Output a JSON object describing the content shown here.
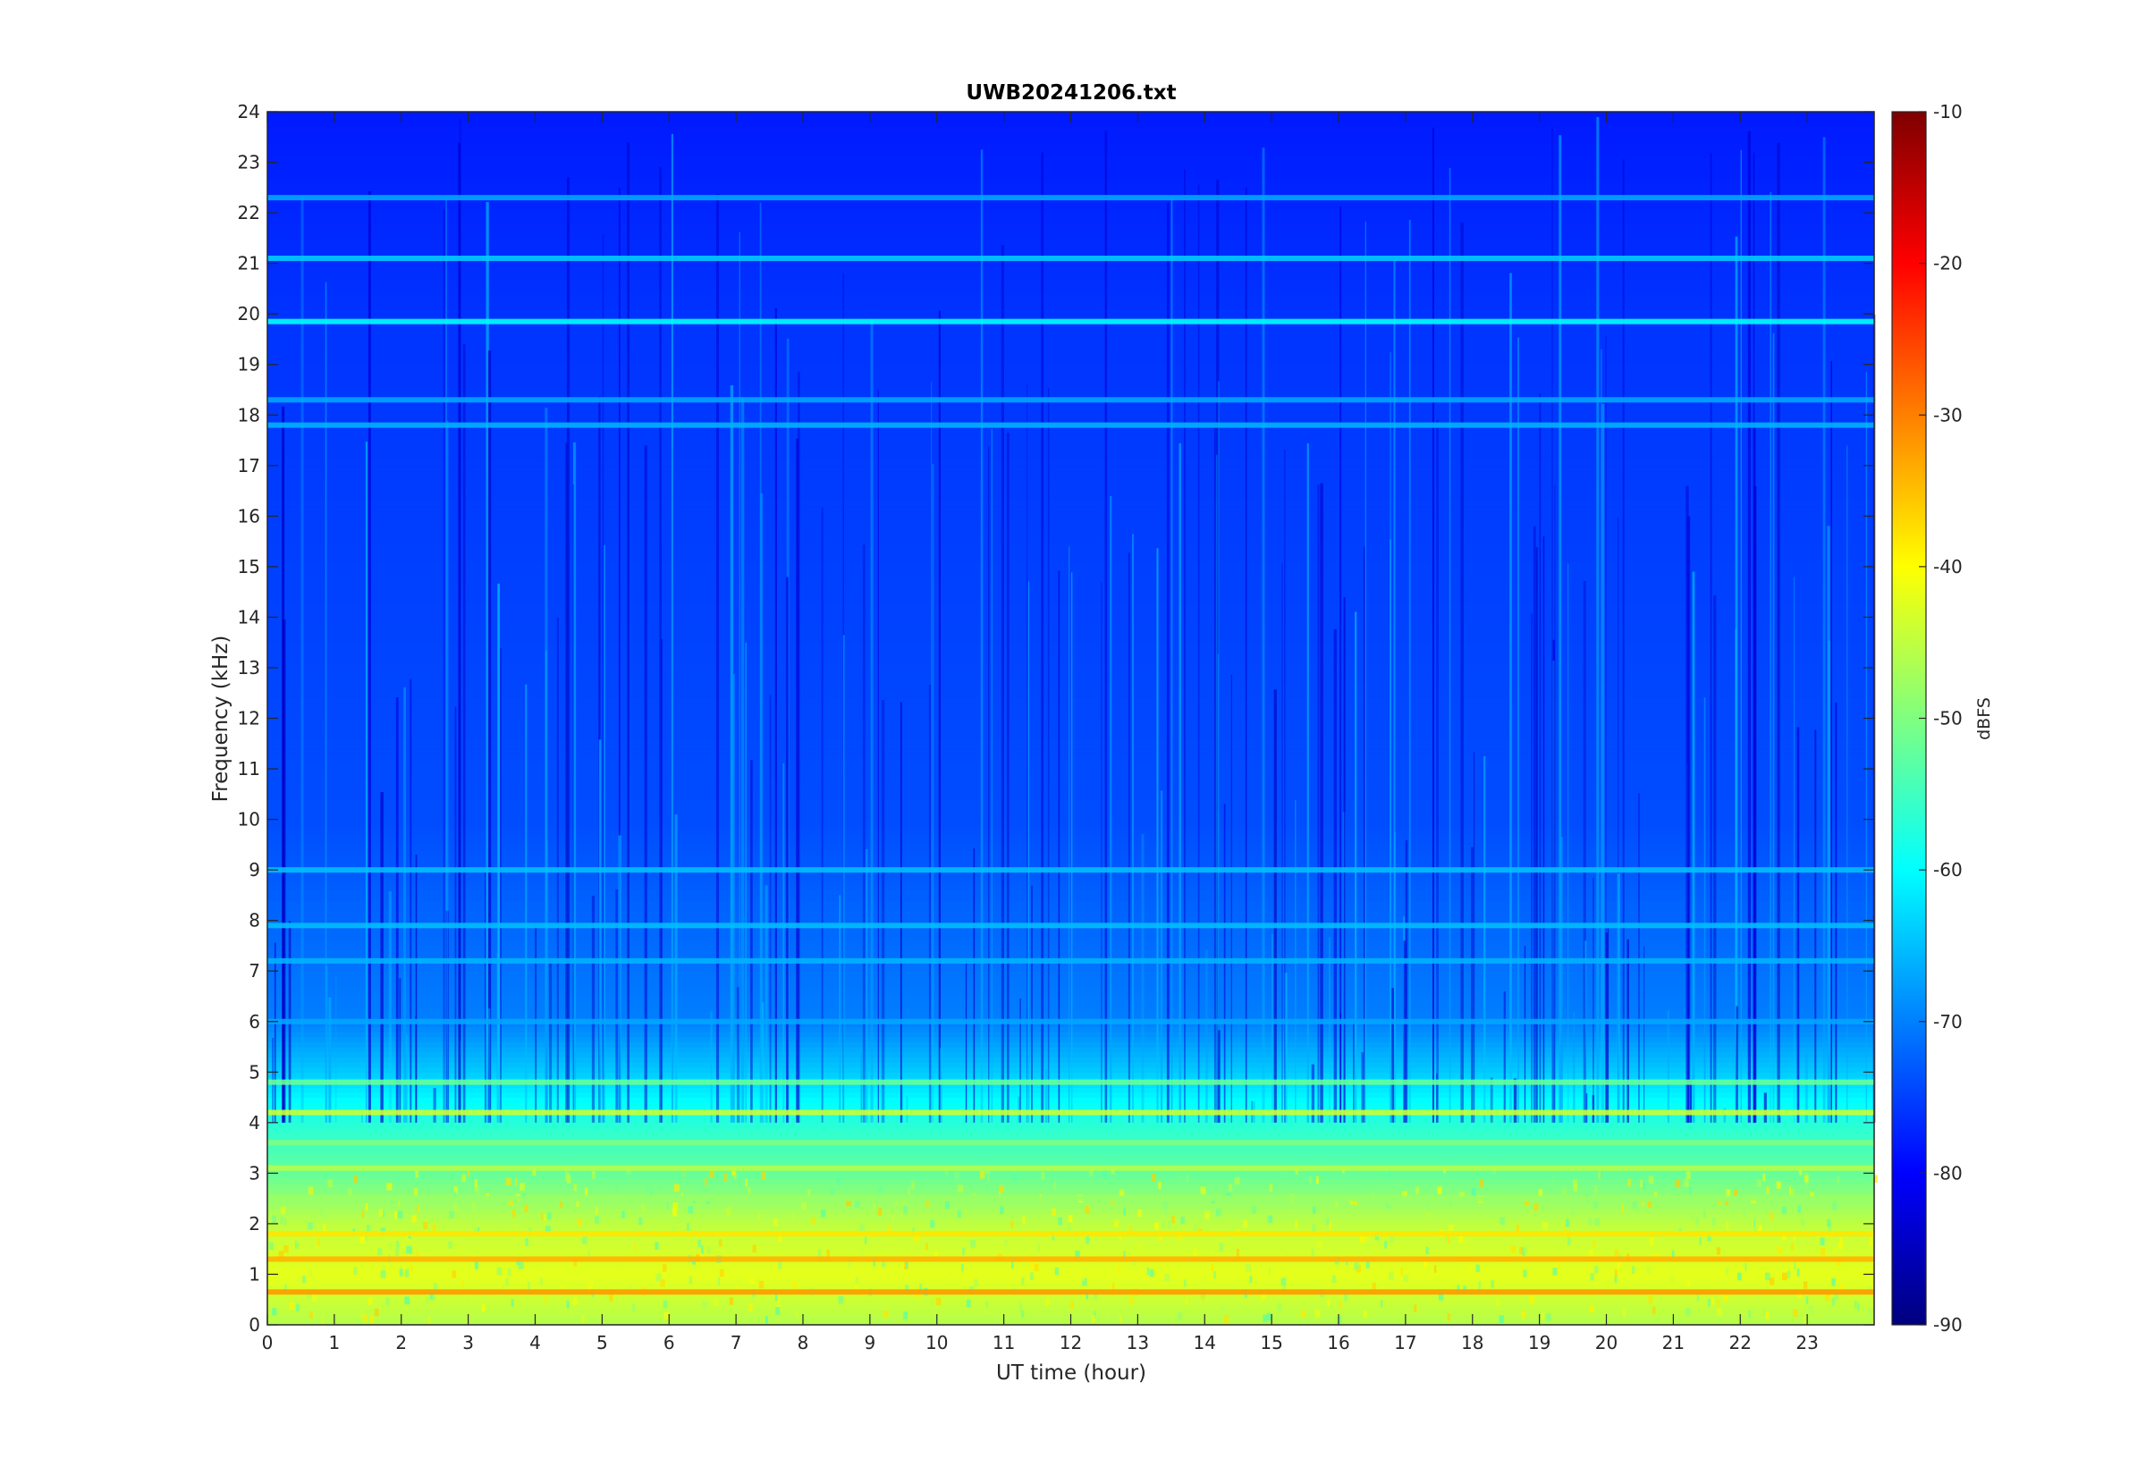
{
  "chart_data": {
    "type": "heatmap",
    "title": "UWB20241206.txt",
    "xlabel": "UT time (hour)",
    "ylabel": "Frequency (kHz)",
    "xlim": [
      0,
      24
    ],
    "ylim": [
      0,
      24
    ],
    "x_ticks": [
      "0",
      "1",
      "2",
      "3",
      "4",
      "5",
      "6",
      "7",
      "8",
      "9",
      "10",
      "11",
      "12",
      "13",
      "14",
      "15",
      "16",
      "17",
      "18",
      "19",
      "20",
      "21",
      "22",
      "23"
    ],
    "y_ticks": [
      "0",
      "1",
      "2",
      "3",
      "4",
      "5",
      "6",
      "7",
      "8",
      "9",
      "10",
      "11",
      "12",
      "13",
      "14",
      "15",
      "16",
      "17",
      "18",
      "19",
      "20",
      "21",
      "22",
      "23",
      "24"
    ],
    "colorbar": {
      "label": "dBFS",
      "range": [
        -90,
        -10
      ],
      "ticks": [
        "-10",
        "-20",
        "-30",
        "-40",
        "-50",
        "-60",
        "-70",
        "-80",
        "-90"
      ],
      "colormap": "jet"
    },
    "horizontal_lines_khz": [
      {
        "freq": 19.85,
        "level": -60
      },
      {
        "freq": 21.1,
        "level": -64
      },
      {
        "freq": 17.8,
        "level": -66
      },
      {
        "freq": 18.3,
        "level": -67
      },
      {
        "freq": 22.3,
        "level": -67
      },
      {
        "freq": 9.0,
        "level": -65
      },
      {
        "freq": 7.9,
        "level": -65
      },
      {
        "freq": 7.2,
        "level": -66
      },
      {
        "freq": 6.0,
        "level": -67
      },
      {
        "freq": 4.8,
        "level": -52
      },
      {
        "freq": 4.2,
        "level": -44
      },
      {
        "freq": 3.6,
        "level": -50
      },
      {
        "freq": 3.1,
        "level": -46
      },
      {
        "freq": 2.5,
        "level": -48
      },
      {
        "freq": 1.8,
        "level": -38
      },
      {
        "freq": 1.3,
        "level": -34
      },
      {
        "freq": 0.65,
        "level": -32
      }
    ],
    "background_gradient_dbfs": [
      {
        "freq": 0,
        "level": -46
      },
      {
        "freq": 1,
        "level": -42
      },
      {
        "freq": 2,
        "level": -45
      },
      {
        "freq": 3,
        "level": -52
      },
      {
        "freq": 4,
        "level": -57
      },
      {
        "freq": 5,
        "level": -64
      },
      {
        "freq": 6,
        "level": -70
      },
      {
        "freq": 10,
        "level": -74
      },
      {
        "freq": 20,
        "level": -76
      },
      {
        "freq": 24,
        "level": -78
      }
    ]
  }
}
